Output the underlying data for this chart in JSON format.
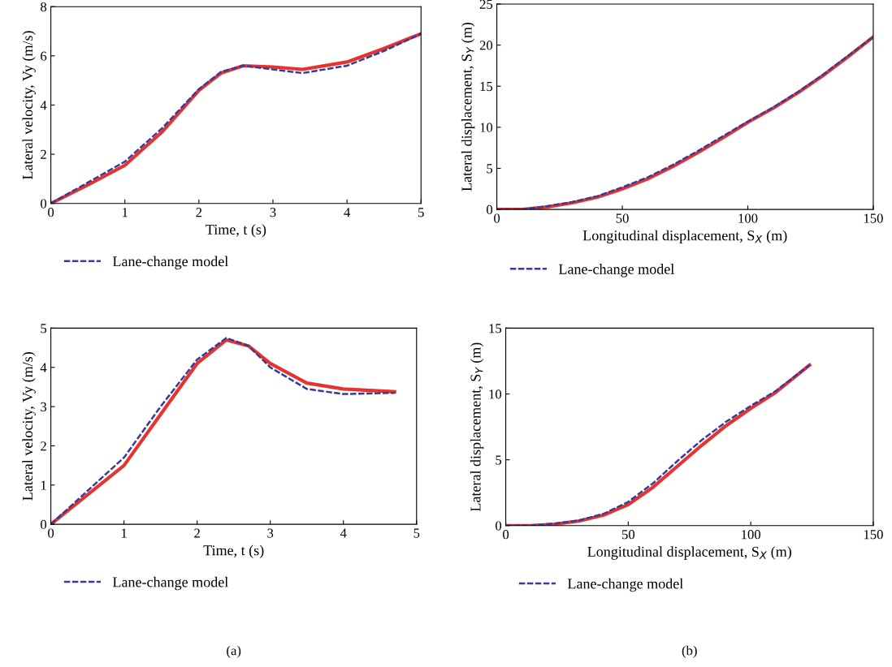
{
  "chart_data": [
    {
      "type": "line",
      "xlabel": "Time, t (s)",
      "ylabel": "Lateral velocity, Vy (m/s)",
      "xlim": [
        0,
        5
      ],
      "ylim": [
        0,
        8
      ],
      "xticks": [
        0,
        1,
        2,
        3,
        4,
        5
      ],
      "yticks": [
        0,
        2,
        4,
        6,
        8
      ],
      "legend": "bottom",
      "series": [
        {
          "color": "#e8322e",
          "line_style": "solid",
          "x": [
            0,
            0.5,
            1,
            1.5,
            2,
            2.3,
            2.6,
            3,
            3.4,
            4,
            4.5,
            5
          ],
          "values": [
            0,
            0.75,
            1.55,
            2.9,
            4.6,
            5.3,
            5.6,
            5.55,
            5.45,
            5.75,
            6.3,
            6.9
          ]
        },
        {
          "name": "Lane-change model",
          "color": "#3a3a9a",
          "line_style": "dashed",
          "x": [
            0,
            0.5,
            1,
            1.5,
            2,
            2.3,
            2.6,
            3,
            3.4,
            4,
            4.5,
            5
          ],
          "values": [
            0,
            0.85,
            1.7,
            3.05,
            4.65,
            5.35,
            5.6,
            5.45,
            5.3,
            5.6,
            6.2,
            6.9
          ]
        }
      ]
    },
    {
      "type": "line",
      "xlabel": "Longitudinal displacement, S$_{X}$ (m)",
      "ylabel": "Lateral displacement, S$_{Y}$ (m)",
      "xlim": [
        0,
        150
      ],
      "ylim": [
        0,
        25
      ],
      "xticks": [
        0,
        50,
        100,
        150
      ],
      "yticks": [
        0,
        5,
        10,
        15,
        20,
        25
      ],
      "legend": "bottom",
      "series": [
        {
          "color": "#e8322e",
          "line_style": "solid",
          "x": [
            0,
            10,
            20,
            30,
            40,
            50,
            60,
            70,
            80,
            90,
            100,
            110,
            120,
            130,
            140,
            150
          ],
          "values": [
            0,
            0,
            0.3,
            0.8,
            1.5,
            2.5,
            3.7,
            5.2,
            6.9,
            8.7,
            10.6,
            12.3,
            14.2,
            16.3,
            18.6,
            21
          ]
        },
        {
          "name": "Lane-change model",
          "color": "#3a3a9a",
          "line_style": "dashed",
          "x": [
            0,
            10,
            20,
            30,
            40,
            50,
            60,
            70,
            80,
            90,
            100,
            110,
            120,
            130,
            140,
            150
          ],
          "values": [
            0,
            0,
            0.4,
            0.9,
            1.6,
            2.7,
            3.9,
            5.4,
            7.1,
            8.9,
            10.7,
            12.4,
            14.3,
            16.4,
            18.7,
            21
          ]
        }
      ]
    },
    {
      "type": "line",
      "xlabel": "Time, t (s)",
      "ylabel": "Lateral velocity, Vy (m/s)",
      "xlim": [
        0,
        5
      ],
      "ylim": [
        0,
        5
      ],
      "xticks": [
        0,
        1,
        2,
        3,
        4,
        5
      ],
      "yticks": [
        0,
        1,
        2,
        3,
        4,
        5
      ],
      "legend": "bottom",
      "annotations": [
        "(a)"
      ],
      "series": [
        {
          "color": "#e8322e",
          "line_style": "solid",
          "x": [
            0,
            0.5,
            1,
            1.5,
            2,
            2.4,
            2.7,
            3,
            3.5,
            4,
            4.7
          ],
          "values": [
            0,
            0.75,
            1.5,
            2.8,
            4.1,
            4.7,
            4.55,
            4.1,
            3.6,
            3.45,
            3.38
          ]
        },
        {
          "name": "Lane-change model",
          "color": "#3a3a9a",
          "line_style": "dashed",
          "x": [
            0,
            0.5,
            1,
            1.5,
            2,
            2.4,
            2.7,
            3,
            3.5,
            4,
            4.7
          ],
          "values": [
            0,
            0.85,
            1.7,
            3.0,
            4.2,
            4.75,
            4.55,
            4.0,
            3.45,
            3.32,
            3.35
          ]
        }
      ]
    },
    {
      "type": "line",
      "xlabel": "Longitudinal displacement, S$_{X}$ (m)",
      "ylabel": "Lateral displacement, S$_{Y}$ (m)",
      "xlim": [
        0,
        150
      ],
      "ylim": [
        0,
        15
      ],
      "xticks": [
        0,
        50,
        100,
        150
      ],
      "yticks": [
        0,
        5,
        10,
        15
      ],
      "legend": "bottom",
      "annotations": [
        "(b)"
      ],
      "series": [
        {
          "color": "#e8322e",
          "line_style": "solid",
          "x": [
            0,
            10,
            20,
            30,
            40,
            50,
            60,
            70,
            80,
            90,
            100,
            110,
            124
          ],
          "values": [
            0,
            0,
            0.1,
            0.35,
            0.8,
            1.6,
            2.9,
            4.5,
            6.1,
            7.6,
            8.9,
            10.1,
            12.2
          ]
        },
        {
          "name": "Lane-change model",
          "color": "#3a3a9a",
          "line_style": "dashed",
          "x": [
            0,
            10,
            20,
            30,
            40,
            50,
            60,
            70,
            80,
            90,
            100,
            110,
            124
          ],
          "values": [
            0,
            0.02,
            0.15,
            0.4,
            0.9,
            1.8,
            3.2,
            4.9,
            6.5,
            7.9,
            9.1,
            10.2,
            12.2
          ]
        }
      ]
    }
  ]
}
